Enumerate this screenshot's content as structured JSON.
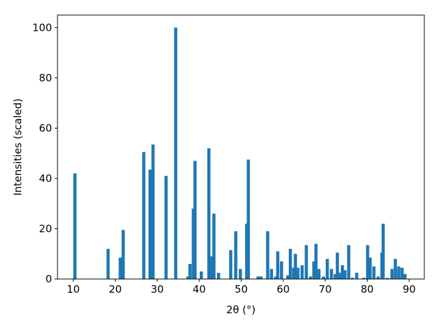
{
  "chart_data": {
    "type": "bar",
    "x_label": "2θ (°)",
    "y_label": "Intensities (scaled)",
    "color": "#1f77b4",
    "x": [
      10.4,
      18.3,
      21.2,
      21.9,
      26.8,
      28.3,
      29.0,
      32.1,
      34.4,
      37.3,
      37.8,
      38.6,
      39.0,
      40.5,
      42.3,
      43.0,
      43.5,
      44.6,
      47.5,
      48.7,
      49.8,
      51.3,
      51.7,
      54.0,
      54.7,
      56.3,
      57.2,
      58.2,
      58.7,
      59.6,
      61.1,
      61.7,
      62.5,
      62.9,
      63.5,
      64.5,
      65.5,
      66.5,
      67.3,
      67.8,
      68.5,
      69.6,
      70.5,
      71.5,
      72.4,
      72.9,
      73.5,
      74.1,
      74.7,
      75.6,
      76.5,
      77.5,
      79.2,
      80.1,
      80.7,
      81.6,
      82.6,
      83.5,
      83.8,
      84.8,
      85.9,
      86.7,
      87.5,
      88.3,
      89.0
    ],
    "values": [
      42,
      12,
      8.5,
      19.5,
      50.5,
      43.5,
      53.5,
      41,
      100,
      1,
      6,
      28,
      47,
      3,
      52,
      9,
      26,
      2.5,
      11.5,
      19,
      4,
      22,
      47.5,
      1,
      1,
      19,
      4,
      1,
      11,
      7,
      1.5,
      12,
      4.5,
      10,
      4.5,
      5.5,
      13.5,
      1,
      7,
      14,
      4,
      1,
      8,
      4,
      2,
      10.5,
      2.5,
      5.5,
      3.5,
      13.5,
      0.5,
      2.5,
      0.5,
      13.5,
      8.5,
      5,
      1,
      10.5,
      22,
      0.5,
      4,
      8,
      5,
      4.5,
      2
    ],
    "xlim": [
      6.25,
      93.6
    ],
    "ylim": [
      0,
      105
    ],
    "xticks": [
      10,
      20,
      30,
      40,
      50,
      60,
      70,
      80,
      90
    ],
    "yticks": [
      0,
      20,
      40,
      60,
      80,
      100
    ]
  }
}
